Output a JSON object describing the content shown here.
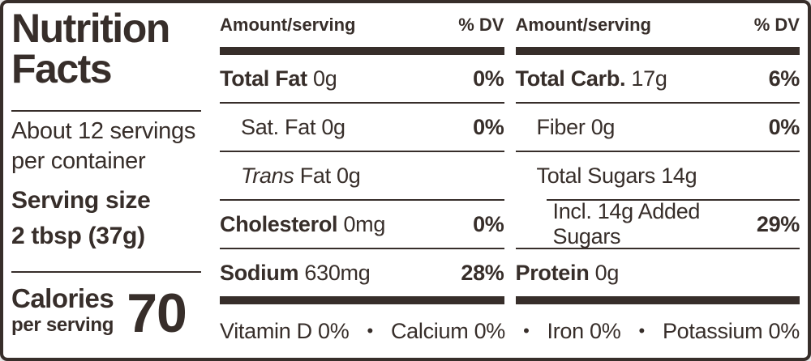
{
  "panel": {
    "text_color": "#372e2a",
    "background": "#ffffff"
  },
  "summary": {
    "title_line1": "Nutrition",
    "title_line2": "Facts",
    "servings_line1": "About 12 servings",
    "servings_line2": "per container",
    "serving_size_label": "Serving size",
    "serving_size_value": "2 tbsp (37g)",
    "calories_label": "Calories",
    "calories_sublabel": "per serving",
    "calories_value": "70"
  },
  "nutrient_columns": [
    {
      "header": {
        "amount_label": "Amount/serving",
        "dv_label": "% DV"
      },
      "rows": [
        {
          "name": "Total Fat",
          "amount": "0g",
          "dv": "0%"
        },
        {
          "name": "Sat. Fat",
          "amount": "0g",
          "dv": "0%"
        },
        {
          "name_italic": "Trans",
          "name": "Fat",
          "amount": "0g",
          "dv": ""
        },
        {
          "name": "Cholesterol",
          "amount": "0mg",
          "dv": "0%"
        },
        {
          "name": "Sodium",
          "amount": "630mg",
          "dv": "28%"
        }
      ]
    },
    {
      "header": {
        "amount_label": "Amount/serving",
        "dv_label": "% DV"
      },
      "rows": [
        {
          "name": "Total Carb.",
          "amount": "17g",
          "dv": "6%"
        },
        {
          "name": "Fiber",
          "amount": "0g",
          "dv": "0%"
        },
        {
          "name": "Total Sugars",
          "amount": "14g",
          "dv": ""
        },
        {
          "name": "Incl. 14g Added Sugars",
          "amount": "",
          "dv": "29%"
        },
        {
          "name": "Protein",
          "amount": "0g",
          "dv": ""
        }
      ]
    }
  ],
  "micronutrients": {
    "separator": "•",
    "items": [
      "Vitamin D 0%",
      "Calcium 0%",
      "Iron 0%",
      "Potassium 0%"
    ]
  }
}
